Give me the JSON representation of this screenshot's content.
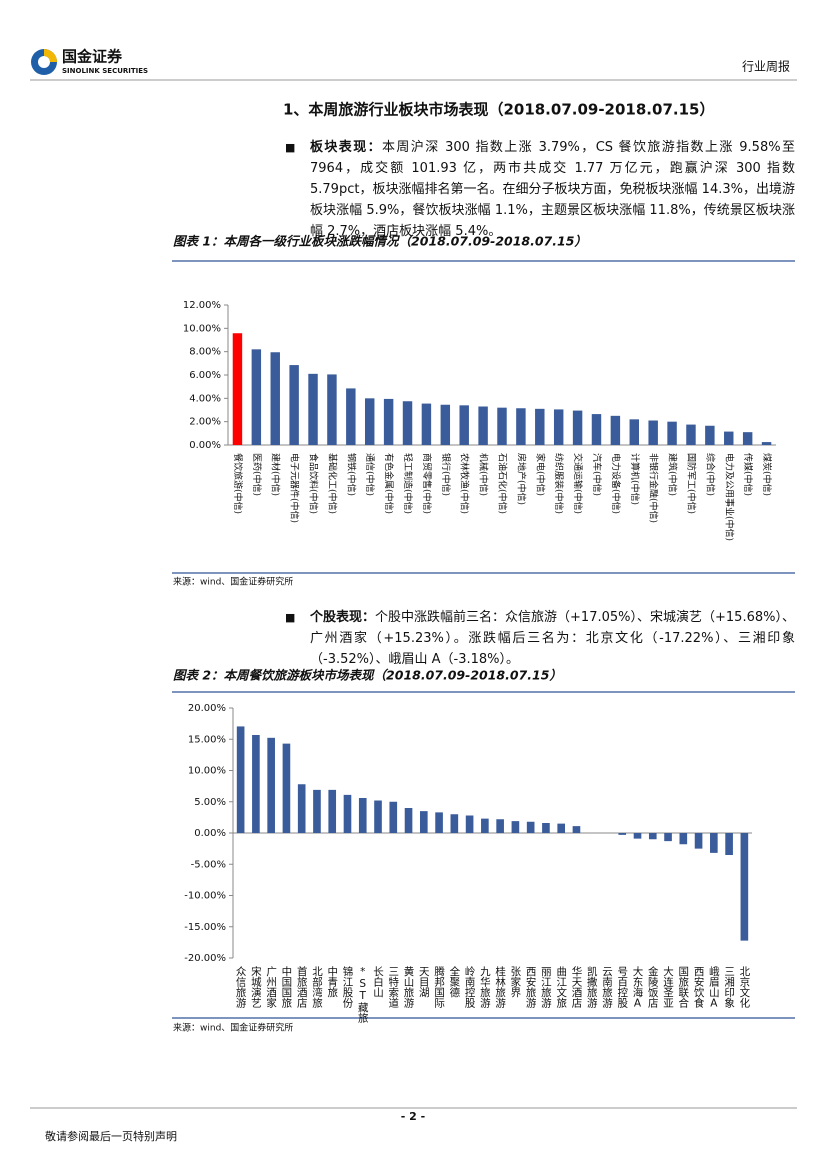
{
  "header": {
    "logo_cn": "国金证券",
    "logo_en": "SINOLINK SECURITIES",
    "report_type": "行业周报"
  },
  "section": {
    "heading": "1、本周旅游行业板块市场表现（2018.07.09-2018.07.15）",
    "paragraphs": [
      {
        "lead": "板块表现：",
        "text": "本周沪深 300 指数上涨 3.79%，CS 餐饮旅游指数上涨 9.58%至 7964，成交额 101.93 亿，两市共成交 1.77 万亿元，跑赢沪深 300 指数5.79pct，板块涨幅排名第一名。在细分子板块方面，免税板块涨幅 14.3%，出境游板块涨幅 5.9%，餐饮板块涨幅 1.1%，主题景区板块涨幅 11.8%，传统景区板块涨幅 2.7%，酒店板块涨幅 5.4%。"
      },
      {
        "lead": "个股表现：",
        "text": "个股中涨跌幅前三名：众信旅游（+17.05%）、宋城演艺（+15.68%）、广州酒家（+15.23%）。涨跌幅后三名为：北京文化（-17.22%）、三湘印象（-3.52%）、峨眉山 A（-3.18%）。"
      }
    ]
  },
  "chart_data": [
    {
      "type": "bar",
      "title": "图表 1：本周各一级行业板块涨跌幅情况（2018.07.09-2018.07.15）",
      "source": "来源：wind、国金证券研究所",
      "categories": [
        "餐饮旅游(中信)",
        "医药(中信)",
        "建材(中信)",
        "电子元器件(中信)",
        "食品饮料(中信)",
        "基础化工(中信)",
        "钢铁(中信)",
        "通信(中信)",
        "有色金属(中信)",
        "轻工制造(中信)",
        "商贸零售(中信)",
        "银行(中信)",
        "农林牧渔(中信)",
        "机械(中信)",
        "石油石化(中信)",
        "房地产(中信)",
        "家电(中信)",
        "纺织服装(中信)",
        "交通运输(中信)",
        "汽车(中信)",
        "电力设备(中信)",
        "计算机(中信)",
        "非银行金融(中信)",
        "建筑(中信)",
        "国防军工(中信)",
        "综合(中信)",
        "电力及公用事业(中信)",
        "传媒(中信)",
        "煤炭(中信)"
      ],
      "values": [
        9.58,
        8.2,
        7.95,
        6.85,
        6.1,
        6.05,
        4.85,
        4.0,
        3.95,
        3.75,
        3.55,
        3.45,
        3.4,
        3.3,
        3.2,
        3.15,
        3.1,
        3.05,
        2.95,
        2.65,
        2.5,
        2.2,
        2.1,
        2.0,
        1.75,
        1.65,
        1.15,
        1.1,
        0.25
      ],
      "colors": [
        "#ff0000",
        "#3a5c9a",
        "#3a5c9a",
        "#3a5c9a",
        "#3a5c9a",
        "#3a5c9a",
        "#3a5c9a",
        "#3a5c9a",
        "#3a5c9a",
        "#3a5c9a",
        "#3a5c9a",
        "#3a5c9a",
        "#3a5c9a",
        "#3a5c9a",
        "#3a5c9a",
        "#3a5c9a",
        "#3a5c9a",
        "#3a5c9a",
        "#3a5c9a",
        "#3a5c9a",
        "#3a5c9a",
        "#3a5c9a",
        "#3a5c9a",
        "#3a5c9a",
        "#3a5c9a",
        "#3a5c9a",
        "#3a5c9a",
        "#3a5c9a",
        "#3a5c9a"
      ],
      "ylim": [
        0,
        12
      ],
      "yticks": [
        {
          "value": 0,
          "label": "0.00%"
        },
        {
          "value": 2,
          "label": "2.00%"
        },
        {
          "value": 4,
          "label": "4.00%"
        },
        {
          "value": 6,
          "label": "6.00%"
        },
        {
          "value": 8,
          "label": "8.00%"
        },
        {
          "value": 10,
          "label": "10.00%"
        },
        {
          "value": 12,
          "label": "12.00%"
        }
      ]
    },
    {
      "type": "bar",
      "title": "图表 2：本周餐饮旅游板块市场表现（2018.07.09-2018.07.15）",
      "source": "来源：wind、国金证券研究所",
      "categories": [
        "众信旅游",
        "宋城演艺",
        "广州酒家",
        "中国国旅",
        "首旅酒店",
        "北部湾旅",
        "中青旅",
        "锦江股份",
        "*ST藏旅",
        "长白山",
        "三特索道",
        "黄山旅游",
        "天目湖",
        "腾邦国际",
        "全聚德",
        "岭南控股",
        "九华旅游",
        "桂林旅游",
        "张家界",
        "西安旅游",
        "丽江旅游",
        "曲江文旅",
        "华天酒店",
        "凯撒旅游",
        "云南旅游",
        "号百控股",
        "大东海A",
        "金陵饭店",
        "大连圣亚",
        "国旅联合",
        "西安饮食",
        "峨眉山A",
        "三湘印象",
        "北京文化"
      ],
      "values": [
        17.05,
        15.68,
        15.23,
        14.3,
        7.8,
        6.9,
        6.9,
        6.1,
        5.6,
        5.2,
        5.0,
        4.0,
        3.5,
        3.3,
        3.0,
        2.8,
        2.3,
        2.2,
        1.9,
        1.8,
        1.6,
        1.5,
        1.1,
        0,
        0,
        -0.3,
        -0.9,
        -1.0,
        -1.3,
        -1.8,
        -2.5,
        -3.18,
        -3.52,
        -17.22
      ],
      "color": "#3a5c9a",
      "ylim": [
        -20,
        20
      ],
      "yticks": [
        {
          "value": -20,
          "label": "-20.00%"
        },
        {
          "value": -15,
          "label": "-15.00%"
        },
        {
          "value": -10,
          "label": "-10.00%"
        },
        {
          "value": -5,
          "label": "-5.00%"
        },
        {
          "value": 0,
          "label": "0.00%"
        },
        {
          "value": 5,
          "label": "5.00%"
        },
        {
          "value": 10,
          "label": "10.00%"
        },
        {
          "value": 15,
          "label": "15.00%"
        },
        {
          "value": 20,
          "label": "20.00%"
        }
      ]
    }
  ],
  "footer": {
    "page": "- 2 -",
    "disclaimer": "敬请参阅最后一页特别声明"
  }
}
